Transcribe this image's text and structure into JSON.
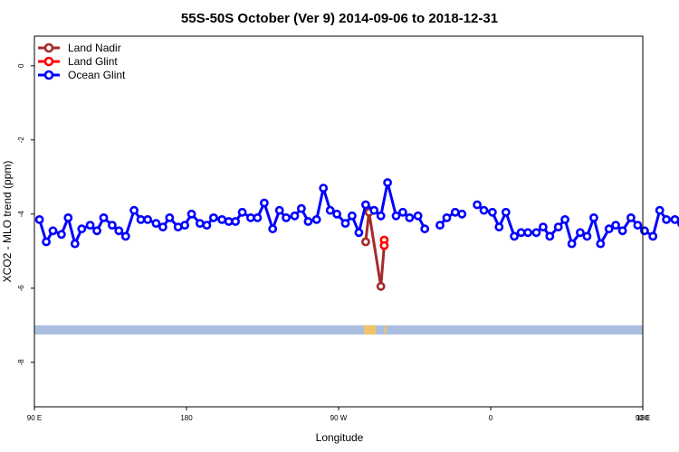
{
  "chart_data": {
    "type": "line",
    "title": "55S-50S October (Ver 9)   2014-09-06 to 2018-12-31",
    "xlabel": "Longitude",
    "ylabel": "XCO2 - MLO trend (ppm)",
    "xlim": [
      90,
      450
    ],
    "ylim": [
      -9.2,
      0.8
    ],
    "x_ticks": [
      {
        "value": 90,
        "label": "90 E"
      },
      {
        "value": 180,
        "label": "180"
      },
      {
        "value": 270,
        "label": "90 W"
      },
      {
        "value": 360,
        "label": "0"
      },
      {
        "value": 450,
        "label": "90 E"
      },
      {
        "value": 540,
        "label": "180"
      }
    ],
    "y_ticks": [
      {
        "value": 0,
        "label": "0"
      },
      {
        "value": -2,
        "label": "-2"
      },
      {
        "value": -4,
        "label": "-4"
      },
      {
        "value": -6,
        "label": "-6"
      },
      {
        "value": -8,
        "label": "-8"
      }
    ],
    "legend_position": "top-left",
    "series": [
      {
        "name": "Land Nadir",
        "color": "#a52a2a",
        "points": [
          [
            286,
            -4.75
          ],
          [
            288,
            -3.95
          ],
          [
            295,
            -5.95
          ],
          [
            297,
            -4.85
          ]
        ]
      },
      {
        "name": "Land Glint",
        "color": "#ff0000",
        "points": [
          [
            297,
            -4.7
          ],
          [
            297,
            -4.85
          ]
        ]
      },
      {
        "name": "Ocean Glint",
        "color": "#0000ff",
        "segments": [
          [
            [
              93,
              -4.15
            ],
            [
              97,
              -4.75
            ],
            [
              101,
              -4.45
            ],
            [
              106,
              -4.55
            ],
            [
              110,
              -4.1
            ],
            [
              114,
              -4.8
            ],
            [
              118,
              -4.4
            ],
            [
              123,
              -4.3
            ],
            [
              127,
              -4.45
            ],
            [
              131,
              -4.1
            ],
            [
              136,
              -4.3
            ],
            [
              140,
              -4.45
            ],
            [
              144,
              -4.6
            ],
            [
              149,
              -3.9
            ],
            [
              153,
              -4.15
            ],
            [
              157,
              -4.15
            ],
            [
              162,
              -4.25
            ],
            [
              166,
              -4.35
            ],
            [
              170,
              -4.1
            ],
            [
              175,
              -4.35
            ],
            [
              179,
              -4.3
            ],
            [
              183,
              -4.0
            ],
            [
              188,
              -4.25
            ],
            [
              192,
              -4.3
            ],
            [
              196,
              -4.1
            ],
            [
              201,
              -4.15
            ],
            [
              205,
              -4.2
            ],
            [
              209,
              -4.2
            ],
            [
              213,
              -3.95
            ],
            [
              218,
              -4.1
            ],
            [
              222,
              -4.1
            ],
            [
              226,
              -3.7
            ],
            [
              231,
              -4.4
            ],
            [
              235,
              -3.9
            ],
            [
              239,
              -4.1
            ],
            [
              244,
              -4.05
            ],
            [
              248,
              -3.85
            ],
            [
              252,
              -4.2
            ],
            [
              257,
              -4.15
            ],
            [
              261,
              -3.3
            ],
            [
              265,
              -3.9
            ],
            [
              269,
              -4.0
            ],
            [
              274,
              -4.25
            ],
            [
              278,
              -4.05
            ],
            [
              282,
              -4.5
            ],
            [
              286,
              -3.75
            ],
            [
              291,
              -3.9
            ],
            [
              295,
              -4.05
            ],
            [
              299,
              -3.15
            ],
            [
              304,
              -4.05
            ],
            [
              308,
              -3.95
            ],
            [
              312,
              -4.1
            ],
            [
              317,
              -4.05
            ],
            [
              321,
              -4.4
            ]
          ],
          [
            [
              330,
              -4.3
            ],
            [
              334,
              -4.1
            ],
            [
              339,
              -3.95
            ],
            [
              343,
              -4.0
            ]
          ],
          [
            [
              352,
              -3.75
            ],
            [
              356,
              -3.9
            ],
            [
              361,
              -3.95
            ],
            [
              365,
              -4.35
            ],
            [
              369,
              -3.95
            ],
            [
              374,
              -4.6
            ],
            [
              378,
              -4.5
            ],
            [
              382,
              -4.5
            ],
            [
              387,
              -4.5
            ],
            [
              391,
              -4.35
            ],
            [
              395,
              -4.6
            ],
            [
              400,
              -4.35
            ],
            [
              404,
              -4.15
            ],
            [
              408,
              -4.8
            ],
            [
              413,
              -4.5
            ],
            [
              417,
              -4.6
            ],
            [
              421,
              -4.1
            ],
            [
              425,
              -4.8
            ],
            [
              430,
              -4.4
            ],
            [
              434,
              -4.3
            ],
            [
              438,
              -4.45
            ],
            [
              443,
              -4.1
            ],
            [
              447,
              -4.3
            ],
            [
              451,
              -4.45
            ],
            [
              456,
              -4.6
            ],
            [
              460,
              -3.9
            ],
            [
              464,
              -4.15
            ],
            [
              469,
              -4.15
            ],
            [
              473,
              -4.25
            ],
            [
              477,
              -4.35
            ]
          ]
        ]
      }
    ],
    "land_strip": {
      "y_range": [
        -7.0,
        -7.25
      ],
      "ocean_color": "#aabfe0",
      "land_color": "#f2c36b",
      "land_ranges": [
        [
          285,
          292
        ],
        [
          297,
          298
        ]
      ]
    }
  }
}
